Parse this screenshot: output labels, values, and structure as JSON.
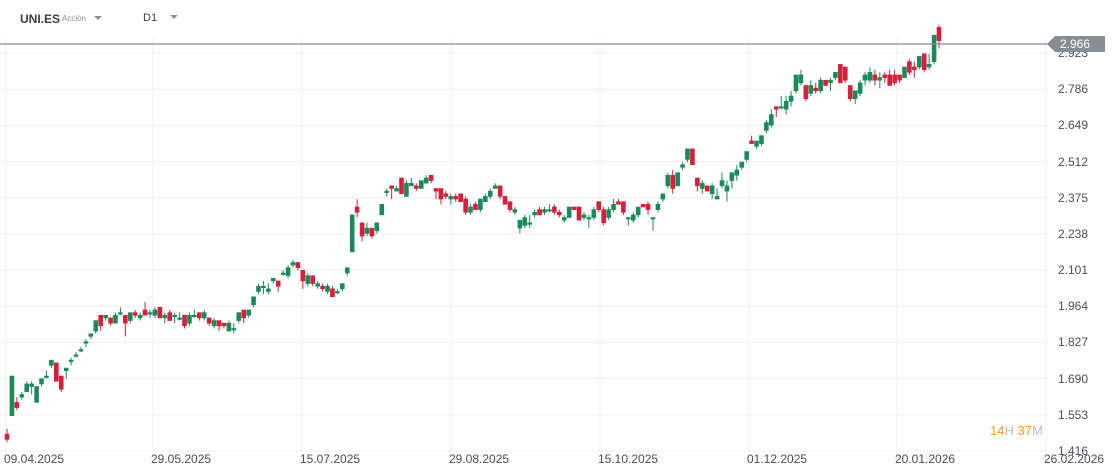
{
  "toolbar": {
    "symbol": "UNI.ES",
    "instrument_type": "Acción",
    "timeframe": "D1"
  },
  "current_price": {
    "value": "2.966",
    "color": "#878d91"
  },
  "countdown": {
    "hours": "14",
    "hours_unit": "H",
    "minutes": "37",
    "minutes_unit": "M"
  },
  "colors": {
    "up": "#1a8a5a",
    "down": "#d61f3a",
    "grid": "#efefef"
  },
  "chart_data": {
    "type": "candlestick",
    "title": "UNI.ES D1",
    "xlabel": "",
    "ylabel": "",
    "ylim": [
      1.416,
      2.966
    ],
    "y_ticks": [
      "2.923",
      "2.786",
      "2.649",
      "2.512",
      "2.375",
      "2.238",
      "2.101",
      "1.964",
      "1.827",
      "1.690",
      "1.553",
      "1.416"
    ],
    "x_ticks": [
      "09.04.2025",
      "29.05.2025",
      "15.07.2025",
      "29.08.2025",
      "15.10.2025",
      "01.12.2025",
      "20.01.2026",
      "26.02.2026"
    ],
    "grid": true,
    "last_price": 2.966,
    "candles": [
      [
        1.48,
        1.5,
        1.45,
        1.46
      ],
      [
        1.55,
        1.7,
        1.55,
        1.7
      ],
      [
        1.6,
        1.62,
        1.57,
        1.58
      ],
      [
        1.62,
        1.64,
        1.61,
        1.63
      ],
      [
        1.64,
        1.68,
        1.64,
        1.67
      ],
      [
        1.66,
        1.68,
        1.63,
        1.67
      ],
      [
        1.6,
        1.66,
        1.6,
        1.66
      ],
      [
        1.67,
        1.69,
        1.66,
        1.69
      ],
      [
        1.7,
        1.72,
        1.69,
        1.7
      ],
      [
        1.74,
        1.76,
        1.73,
        1.76
      ],
      [
        1.75,
        1.75,
        1.68,
        1.68
      ],
      [
        1.7,
        1.7,
        1.64,
        1.65
      ],
      [
        1.72,
        1.73,
        1.69,
        1.73
      ],
      [
        1.76,
        1.77,
        1.74,
        1.76
      ],
      [
        1.78,
        1.79,
        1.77,
        1.78
      ],
      [
        1.8,
        1.81,
        1.79,
        1.8
      ],
      [
        1.83,
        1.84,
        1.81,
        1.83
      ],
      [
        1.85,
        1.86,
        1.84,
        1.86
      ],
      [
        1.87,
        1.91,
        1.86,
        1.91
      ],
      [
        1.93,
        1.93,
        1.87,
        1.89
      ],
      [
        1.92,
        1.93,
        1.91,
        1.93
      ],
      [
        1.92,
        1.92,
        1.89,
        1.9
      ],
      [
        1.9,
        1.94,
        1.9,
        1.93
      ],
      [
        1.94,
        1.96,
        1.93,
        1.94
      ],
      [
        1.93,
        1.93,
        1.85,
        1.9
      ],
      [
        1.91,
        1.94,
        1.9,
        1.94
      ],
      [
        1.94,
        1.95,
        1.92,
        1.93
      ],
      [
        1.92,
        1.94,
        1.91,
        1.93
      ],
      [
        1.95,
        1.98,
        1.93,
        1.93
      ],
      [
        1.94,
        1.95,
        1.92,
        1.94
      ],
      [
        1.93,
        1.96,
        1.92,
        1.95
      ],
      [
        1.96,
        1.96,
        1.92,
        1.92
      ],
      [
        1.92,
        1.94,
        1.9,
        1.93
      ],
      [
        1.94,
        1.95,
        1.91,
        1.91
      ],
      [
        1.93,
        1.94,
        1.9,
        1.93
      ],
      [
        1.92,
        1.94,
        1.91,
        1.92
      ],
      [
        1.93,
        1.93,
        1.88,
        1.89
      ],
      [
        1.9,
        1.94,
        1.89,
        1.93
      ],
      [
        1.93,
        1.95,
        1.92,
        1.93
      ],
      [
        1.94,
        1.94,
        1.91,
        1.92
      ],
      [
        1.92,
        1.95,
        1.91,
        1.94
      ],
      [
        1.92,
        1.92,
        1.89,
        1.9
      ],
      [
        1.89,
        1.92,
        1.88,
        1.91
      ],
      [
        1.91,
        1.91,
        1.87,
        1.89
      ],
      [
        1.9,
        1.9,
        1.88,
        1.89
      ],
      [
        1.87,
        1.91,
        1.87,
        1.9
      ],
      [
        1.88,
        1.9,
        1.86,
        1.88
      ],
      [
        1.91,
        1.94,
        1.9,
        1.94
      ],
      [
        1.95,
        1.95,
        1.9,
        1.92
      ],
      [
        1.93,
        1.95,
        1.92,
        1.95
      ],
      [
        1.97,
        2.0,
        1.96,
        2.0
      ],
      [
        2.02,
        2.05,
        2.01,
        2.04
      ],
      [
        2.04,
        2.06,
        2.01,
        2.04
      ],
      [
        2.02,
        2.05,
        2.01,
        2.03
      ],
      [
        2.06,
        2.07,
        2.05,
        2.07
      ],
      [
        2.06,
        2.06,
        2.02,
        2.04
      ],
      [
        2.09,
        2.1,
        2.08,
        2.09
      ],
      [
        2.08,
        2.12,
        2.07,
        2.11
      ],
      [
        2.12,
        2.14,
        2.11,
        2.13
      ],
      [
        2.13,
        2.13,
        2.1,
        2.11
      ],
      [
        2.1,
        2.1,
        2.03,
        2.06
      ],
      [
        2.05,
        2.09,
        2.04,
        2.08
      ],
      [
        2.08,
        2.08,
        2.04,
        2.05
      ],
      [
        2.04,
        2.06,
        2.03,
        2.05
      ],
      [
        2.04,
        2.05,
        2.02,
        2.03
      ],
      [
        2.02,
        2.05,
        2.01,
        2.04
      ],
      [
        2.03,
        2.04,
        2.0,
        2.0
      ],
      [
        2.02,
        2.03,
        2.01,
        2.02
      ],
      [
        2.03,
        2.05,
        2.02,
        2.05
      ],
      [
        2.09,
        2.11,
        2.08,
        2.11
      ],
      [
        2.17,
        2.31,
        2.17,
        2.31
      ],
      [
        2.34,
        2.37,
        2.3,
        2.32
      ],
      [
        2.28,
        2.28,
        2.21,
        2.23
      ],
      [
        2.24,
        2.28,
        2.23,
        2.26
      ],
      [
        2.26,
        2.26,
        2.22,
        2.23
      ],
      [
        2.25,
        2.28,
        2.24,
        2.28
      ],
      [
        2.31,
        2.35,
        2.31,
        2.35
      ],
      [
        2.4,
        2.41,
        2.38,
        2.4
      ],
      [
        2.42,
        2.42,
        2.37,
        2.41
      ],
      [
        2.4,
        2.42,
        2.4,
        2.41
      ],
      [
        2.45,
        2.45,
        2.39,
        2.39
      ],
      [
        2.38,
        2.44,
        2.38,
        2.43
      ],
      [
        2.42,
        2.45,
        2.42,
        2.43
      ],
      [
        2.42,
        2.43,
        2.4,
        2.41
      ],
      [
        2.41,
        2.44,
        2.41,
        2.44
      ],
      [
        2.43,
        2.46,
        2.43,
        2.45
      ],
      [
        2.46,
        2.46,
        2.43,
        2.44
      ],
      [
        2.41,
        2.41,
        2.37,
        2.4
      ],
      [
        2.41,
        2.41,
        2.35,
        2.37
      ],
      [
        2.39,
        2.4,
        2.37,
        2.38
      ],
      [
        2.37,
        2.39,
        2.35,
        2.38
      ],
      [
        2.38,
        2.39,
        2.36,
        2.37
      ],
      [
        2.39,
        2.39,
        2.36,
        2.36
      ],
      [
        2.37,
        2.38,
        2.31,
        2.32
      ],
      [
        2.32,
        2.35,
        2.31,
        2.34
      ],
      [
        2.35,
        2.36,
        2.33,
        2.33
      ],
      [
        2.33,
        2.37,
        2.32,
        2.37
      ],
      [
        2.36,
        2.39,
        2.36,
        2.38
      ],
      [
        2.38,
        2.41,
        2.37,
        2.4
      ],
      [
        2.41,
        2.43,
        2.41,
        2.42
      ],
      [
        2.42,
        2.42,
        2.37,
        2.38
      ],
      [
        2.38,
        2.38,
        2.35,
        2.35
      ],
      [
        2.36,
        2.36,
        2.32,
        2.33
      ],
      [
        2.32,
        2.34,
        2.31,
        2.33
      ],
      [
        2.26,
        2.29,
        2.24,
        2.29
      ],
      [
        2.27,
        2.31,
        2.26,
        2.3
      ],
      [
        2.28,
        2.31,
        2.26,
        2.28
      ],
      [
        2.31,
        2.33,
        2.3,
        2.32
      ],
      [
        2.33,
        2.34,
        2.31,
        2.31
      ],
      [
        2.32,
        2.34,
        2.31,
        2.33
      ],
      [
        2.33,
        2.35,
        2.32,
        2.33
      ],
      [
        2.34,
        2.35,
        2.31,
        2.32
      ],
      [
        2.32,
        2.33,
        2.3,
        2.31
      ],
      [
        2.29,
        2.31,
        2.28,
        2.3
      ],
      [
        2.3,
        2.34,
        2.3,
        2.34
      ],
      [
        2.34,
        2.34,
        2.33,
        2.33
      ],
      [
        2.34,
        2.34,
        2.29,
        2.29
      ],
      [
        2.3,
        2.32,
        2.29,
        2.31
      ],
      [
        2.3,
        2.31,
        2.26,
        2.3
      ],
      [
        2.3,
        2.34,
        2.29,
        2.33
      ],
      [
        2.36,
        2.36,
        2.32,
        2.33
      ],
      [
        2.33,
        2.34,
        2.27,
        2.28
      ],
      [
        2.3,
        2.34,
        2.29,
        2.33
      ],
      [
        2.33,
        2.37,
        2.32,
        2.35
      ],
      [
        2.36,
        2.37,
        2.35,
        2.35
      ],
      [
        2.36,
        2.36,
        2.31,
        2.32
      ],
      [
        2.3,
        2.3,
        2.27,
        2.3
      ],
      [
        2.29,
        2.32,
        2.28,
        2.31
      ],
      [
        2.31,
        2.34,
        2.3,
        2.34
      ],
      [
        2.35,
        2.35,
        2.34,
        2.34
      ],
      [
        2.35,
        2.36,
        2.31,
        2.33
      ],
      [
        2.3,
        2.3,
        2.25,
        2.3
      ],
      [
        2.33,
        2.36,
        2.32,
        2.35
      ],
      [
        2.37,
        2.39,
        2.36,
        2.39
      ],
      [
        2.42,
        2.47,
        2.41,
        2.46
      ],
      [
        2.46,
        2.48,
        2.39,
        2.41
      ],
      [
        2.42,
        2.47,
        2.42,
        2.47
      ],
      [
        2.49,
        2.51,
        2.48,
        2.5
      ],
      [
        2.52,
        2.56,
        2.51,
        2.56
      ],
      [
        2.56,
        2.56,
        2.5,
        2.5
      ],
      [
        2.45,
        2.45,
        2.4,
        2.42
      ],
      [
        2.41,
        2.44,
        2.39,
        2.43
      ],
      [
        2.42,
        2.42,
        2.4,
        2.4
      ],
      [
        2.39,
        2.43,
        2.37,
        2.42
      ],
      [
        2.37,
        2.41,
        2.37,
        2.38
      ],
      [
        2.42,
        2.47,
        2.41,
        2.44
      ],
      [
        2.4,
        2.44,
        2.36,
        2.42
      ],
      [
        2.44,
        2.47,
        2.41,
        2.47
      ],
      [
        2.46,
        2.5,
        2.44,
        2.48
      ],
      [
        2.49,
        2.51,
        2.48,
        2.51
      ],
      [
        2.52,
        2.55,
        2.51,
        2.55
      ],
      [
        2.59,
        2.61,
        2.58,
        2.58
      ],
      [
        2.57,
        2.59,
        2.56,
        2.59
      ],
      [
        2.58,
        2.6,
        2.57,
        2.61
      ],
      [
        2.63,
        2.67,
        2.62,
        2.66
      ],
      [
        2.65,
        2.71,
        2.64,
        2.69
      ],
      [
        2.72,
        2.72,
        2.68,
        2.71
      ],
      [
        2.72,
        2.76,
        2.71,
        2.72
      ],
      [
        2.71,
        2.76,
        2.69,
        2.74
      ],
      [
        2.74,
        2.78,
        2.72,
        2.76
      ],
      [
        2.78,
        2.84,
        2.77,
        2.84
      ],
      [
        2.81,
        2.86,
        2.8,
        2.84
      ],
      [
        2.8,
        2.8,
        2.74,
        2.75
      ],
      [
        2.77,
        2.82,
        2.76,
        2.8
      ],
      [
        2.79,
        2.81,
        2.77,
        2.78
      ],
      [
        2.78,
        2.83,
        2.77,
        2.82
      ],
      [
        2.82,
        2.82,
        2.8,
        2.8
      ],
      [
        2.81,
        2.83,
        2.78,
        2.82
      ],
      [
        2.83,
        2.85,
        2.82,
        2.85
      ],
      [
        2.88,
        2.88,
        2.82,
        2.81
      ],
      [
        2.87,
        2.87,
        2.81,
        2.82
      ],
      [
        2.8,
        2.8,
        2.74,
        2.75
      ],
      [
        2.75,
        2.78,
        2.73,
        2.78
      ],
      [
        2.77,
        2.82,
        2.76,
        2.81
      ],
      [
        2.82,
        2.85,
        2.8,
        2.84
      ],
      [
        2.82,
        2.87,
        2.81,
        2.85
      ],
      [
        2.84,
        2.86,
        2.8,
        2.82
      ],
      [
        2.82,
        2.85,
        2.79,
        2.83
      ],
      [
        2.84,
        2.85,
        2.81,
        2.83
      ],
      [
        2.84,
        2.86,
        2.8,
        2.8
      ],
      [
        2.84,
        2.86,
        2.8,
        2.81
      ],
      [
        2.84,
        2.84,
        2.81,
        2.82
      ],
      [
        2.83,
        2.87,
        2.83,
        2.87
      ],
      [
        2.89,
        2.9,
        2.84,
        2.85
      ],
      [
        2.87,
        2.89,
        2.83,
        2.86
      ],
      [
        2.87,
        2.91,
        2.86,
        2.91
      ],
      [
        2.92,
        2.92,
        2.85,
        2.86
      ],
      [
        2.87,
        2.92,
        2.86,
        2.88
      ],
      [
        2.89,
        2.99,
        2.88,
        2.99
      ],
      [
        3.02,
        3.03,
        2.94,
        2.97
      ]
    ]
  }
}
